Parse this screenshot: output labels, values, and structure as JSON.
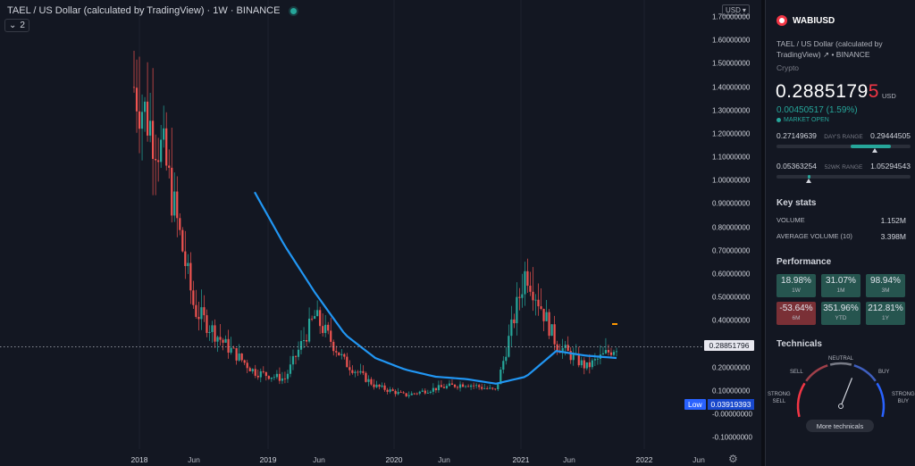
{
  "header": {
    "title": "TAEL / US Dollar (calculated by TradingView) · 1W · BINANCE",
    "indicators_count": "2",
    "currency": "USD"
  },
  "chart": {
    "price_axis": [
      "1.70000000",
      "1.60000000",
      "1.50000000",
      "1.40000000",
      "1.30000000",
      "1.20000000",
      "1.10000000",
      "1.00000000",
      "0.90000000",
      "0.80000000",
      "0.70000000",
      "0.60000000",
      "0.50000000",
      "0.40000000",
      "0.30000000",
      "0.20000000",
      "0.10000000",
      "-0.00000000",
      "-0.10000000"
    ],
    "current_price_label": "0.28851796",
    "low_label": "Low",
    "low_value": "0.03919393",
    "time_axis": [
      {
        "label": "2018",
        "major": true
      },
      {
        "label": "Jun",
        "major": false
      },
      {
        "label": "2019",
        "major": true
      },
      {
        "label": "Jun",
        "major": false
      },
      {
        "label": "2020",
        "major": true
      },
      {
        "label": "Jun",
        "major": false
      },
      {
        "label": "2021",
        "major": true
      },
      {
        "label": "Jun",
        "major": false
      },
      {
        "label": "2022",
        "major": true
      },
      {
        "label": "Jun",
        "major": false
      }
    ],
    "colors": {
      "up": "#26a69a",
      "down": "#ef5350",
      "ma": "#2196f3",
      "background": "#131722"
    }
  },
  "chart_data": {
    "type": "line",
    "x": [
      "2018-01",
      "2018-03",
      "2018-06",
      "2018-09",
      "2019-01",
      "2019-03",
      "2019-06",
      "2019-09",
      "2020-01",
      "2020-03",
      "2020-06",
      "2020-09",
      "2021-01",
      "2021-03",
      "2021-05",
      "2021-07",
      "2021-09"
    ],
    "series": [
      {
        "name": "",
        "values": [
          1.4,
          1.1,
          0.45,
          0.3,
          0.18,
          0.15,
          0.42,
          0.22,
          0.12,
          0.08,
          0.11,
          0.13,
          0.1,
          0.62,
          0.3,
          0.2,
          0.29
        ]
      },
      {
        "name": "",
        "values": [
          null,
          null,
          null,
          null,
          0.95,
          0.72,
          0.52,
          0.34,
          0.24,
          0.19,
          0.16,
          0.15,
          0.13,
          0.16,
          0.27,
          0.25,
          0.24
        ]
      }
    ],
    "ylim": [
      -0.12,
      1.72
    ],
    "current": 0.28851796,
    "low": 0.03919393,
    "title": "TAEL / US Dollar (calculated by TradingView) · 1W · BINANCE",
    "xlabel": "",
    "ylabel": ""
  },
  "panel": {
    "symbol": "WABIUSD",
    "description": "TAEL / US Dollar (calculated by TradingView) ↗ • BINANCE",
    "category": "Crypto",
    "price_main": "0.2885179",
    "price_last_digit": "5",
    "price_unit": "USD",
    "change": "0.00450517 (1.59%)",
    "market_status": "MARKET OPEN",
    "days_range": {
      "low": "0.27149639",
      "label": "DAY'S RANGE",
      "high": "0.29444505",
      "fill_start": 0.55,
      "fill_end": 0.85,
      "marker": 0.73
    },
    "wk52_range": {
      "low": "0.05363254",
      "label": "52WK RANGE",
      "high": "1.05294543",
      "fill_start": 0.23,
      "fill_end": 0.25,
      "marker": 0.24
    },
    "key_stats_title": "Key stats",
    "stats": [
      {
        "label": "VOLUME",
        "value": "1.152M"
      },
      {
        "label": "AVERAGE VOLUME (10)",
        "value": "3.398M"
      }
    ],
    "performance_title": "Performance",
    "performance": [
      {
        "value": "18.98%",
        "label": "1W",
        "positive": true
      },
      {
        "value": "31.07%",
        "label": "1M",
        "positive": true
      },
      {
        "value": "98.94%",
        "label": "3M",
        "positive": true
      },
      {
        "value": "-53.64%",
        "label": "6M",
        "positive": false
      },
      {
        "value": "351.96%",
        "label": "YTD",
        "positive": true
      },
      {
        "value": "212.81%",
        "label": "1Y",
        "positive": true
      }
    ],
    "technicals_title": "Technicals",
    "gauge": {
      "neutral": "NEUTRAL",
      "sell": "SELL",
      "buy": "BUY",
      "strong_sell_1": "STRONG",
      "strong_sell_2": "SELL",
      "strong_buy_1": "STRONG",
      "strong_buy_2": "BUY",
      "reading": 0.62
    },
    "more_technicals": "More technicals"
  }
}
